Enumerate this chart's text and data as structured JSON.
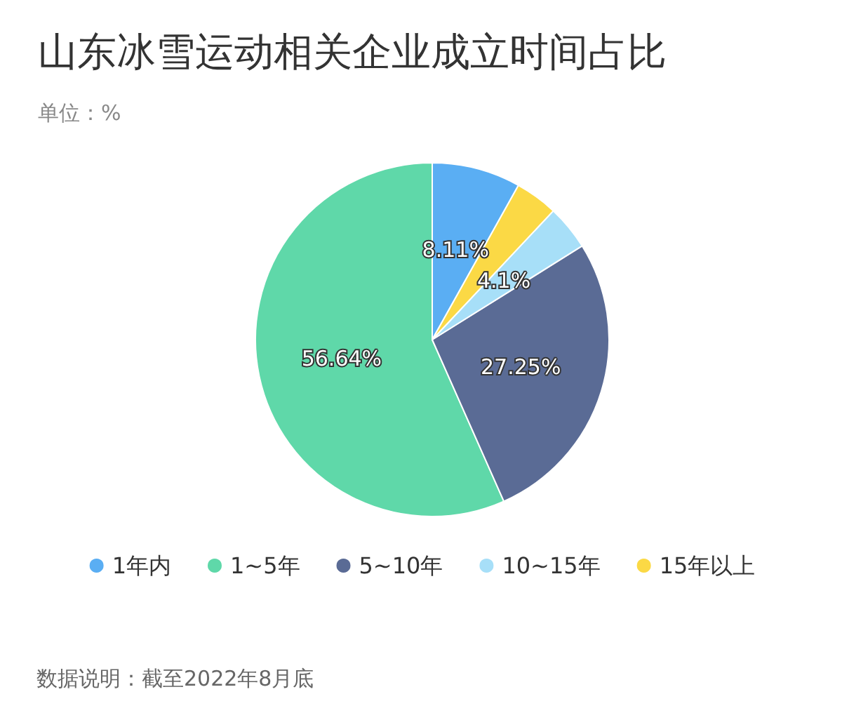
{
  "chart_data": {
    "type": "pie",
    "title": "山东冰雪运动相关企业成立时间占比",
    "subtitle": "单位：%",
    "categories": [
      "1年内",
      "1~5年",
      "5~10年",
      "10~15年",
      "15年以上"
    ],
    "values": [
      8.11,
      56.64,
      27.25,
      4.1,
      3.9
    ],
    "value_labels": [
      "8.11%",
      "56.64%",
      "27.25%",
      "4.1%",
      null
    ],
    "colors": [
      "#5aaef3",
      "#5fd8a9",
      "#5a6b95",
      "#a7dff8",
      "#fbd945"
    ],
    "legend": "bottom",
    "annotations": [
      "数据说明：截至2022年8月底"
    ]
  }
}
